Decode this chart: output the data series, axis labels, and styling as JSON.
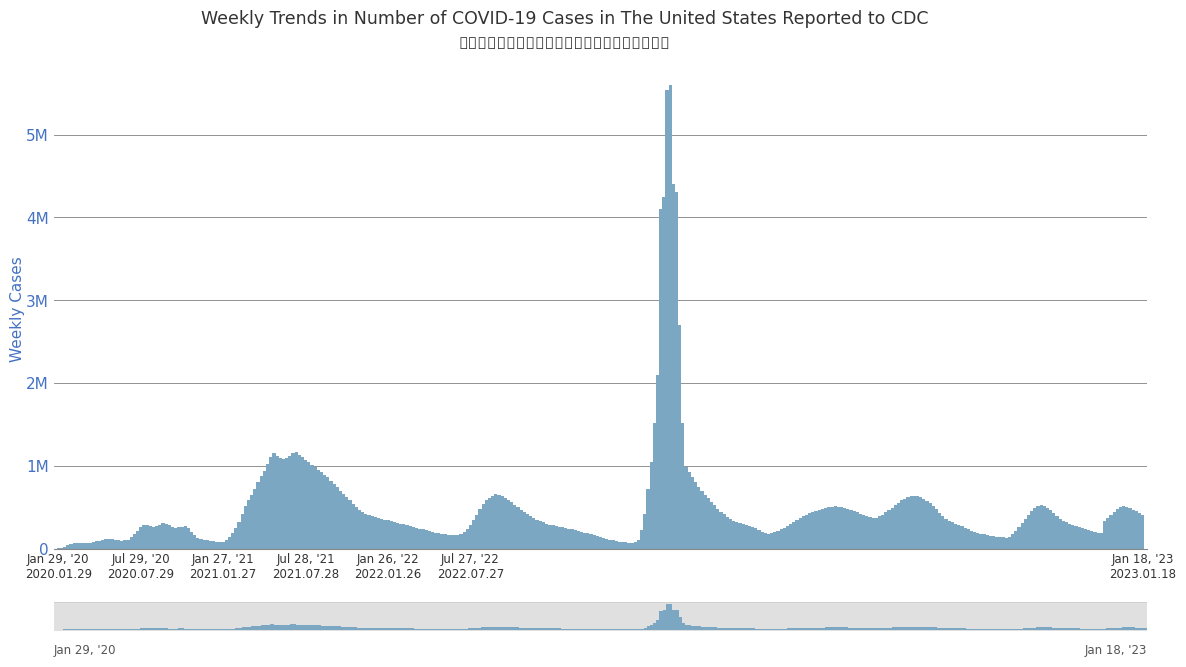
{
  "title_en": "Weekly Trends in Number of COVID-19 Cases in The United States Reported to CDC",
  "title_zh": "向美国疾控中心报告的新冠病例数量趋势（每周）",
  "ylabel": "Weekly Cases",
  "bar_color": "#7ba7c2",
  "ylim": [
    0,
    5800000
  ],
  "yticks": [
    0,
    1000000,
    2000000,
    3000000,
    4000000,
    5000000
  ],
  "ytick_labels": [
    "0",
    "1M",
    "2M",
    "3M",
    "4M",
    "5M"
  ],
  "xtick_top": [
    "Jan 29, '20",
    "Jul 29, '20",
    "Jan 27, '21",
    "Jul 28, '21",
    "Jan 26, '22",
    "Jul 27, '22",
    "Jan 18, '23"
  ],
  "xtick_bot": [
    "2020.01.29",
    "2020.07.29",
    "2021.01.27",
    "2021.07.28",
    "2022.01.26",
    "2022.07.27",
    "2023.01.18"
  ],
  "bottom_left": "Jan 29, '20",
  "bottom_right": "Jan 18, '23",
  "weekly_cases": [
    3000,
    8000,
    22000,
    45000,
    55000,
    68000,
    72000,
    68000,
    62000,
    65000,
    72000,
    78000,
    85000,
    95000,
    105000,
    115000,
    118000,
    112000,
    105000,
    98000,
    92000,
    98000,
    108000,
    138000,
    175000,
    215000,
    255000,
    278000,
    285000,
    270000,
    265000,
    272000,
    290000,
    305000,
    298000,
    278000,
    258000,
    248000,
    255000,
    265000,
    272000,
    245000,
    198000,
    158000,
    132000,
    118000,
    108000,
    98000,
    92000,
    88000,
    82000,
    78000,
    82000,
    98000,
    135000,
    185000,
    245000,
    320000,
    420000,
    510000,
    580000,
    650000,
    720000,
    800000,
    870000,
    940000,
    1020000,
    1100000,
    1150000,
    1120000,
    1090000,
    1080000,
    1090000,
    1120000,
    1150000,
    1160000,
    1130000,
    1100000,
    1070000,
    1040000,
    1010000,
    980000,
    950000,
    920000,
    890000,
    860000,
    820000,
    780000,
    740000,
    700000,
    660000,
    620000,
    580000,
    540000,
    500000,
    465000,
    435000,
    415000,
    400000,
    390000,
    380000,
    370000,
    360000,
    350000,
    340000,
    330000,
    320000,
    310000,
    300000,
    292000,
    282000,
    272000,
    262000,
    250000,
    240000,
    230000,
    220000,
    210000,
    200000,
    192000,
    185000,
    178000,
    172000,
    167000,
    164000,
    163000,
    168000,
    178000,
    198000,
    235000,
    285000,
    345000,
    410000,
    475000,
    535000,
    580000,
    615000,
    640000,
    655000,
    650000,
    635000,
    615000,
    590000,
    560000,
    530000,
    500000,
    470000,
    440000,
    415000,
    390000,
    368000,
    348000,
    330000,
    315000,
    300000,
    288000,
    278000,
    270000,
    262000,
    255000,
    248000,
    240000,
    232000,
    222000,
    212000,
    202000,
    192000,
    182000,
    172000,
    162000,
    152000,
    142000,
    132000,
    120000,
    108000,
    98000,
    90000,
    84000,
    78000,
    74000,
    70000,
    68000,
    75000,
    105000,
    220000,
    420000,
    720000,
    1050000,
    1520000,
    2100000,
    4100000,
    4250000,
    5540000,
    5600000,
    4400000,
    4300000,
    2700000,
    1520000,
    980000,
    920000,
    860000,
    800000,
    748000,
    698000,
    650000,
    605000,
    562000,
    520000,
    480000,
    445000,
    412000,
    382000,
    358000,
    338000,
    320000,
    305000,
    292000,
    282000,
    272000,
    262000,
    242000,
    222000,
    202000,
    188000,
    180000,
    185000,
    198000,
    215000,
    232000,
    252000,
    272000,
    295000,
    318000,
    342000,
    365000,
    388000,
    408000,
    428000,
    445000,
    458000,
    468000,
    478000,
    488000,
    498000,
    505000,
    508000,
    505000,
    498000,
    488000,
    478000,
    465000,
    452000,
    438000,
    422000,
    405000,
    388000,
    375000,
    368000,
    372000,
    388000,
    408000,
    435000,
    465000,
    495000,
    525000,
    555000,
    580000,
    602000,
    620000,
    632000,
    640000,
    632000,
    618000,
    600000,
    575000,
    545000,
    510000,
    472000,
    432000,
    392000,
    360000,
    335000,
    315000,
    300000,
    285000,
    268000,
    250000,
    232000,
    215000,
    202000,
    190000,
    180000,
    170000,
    162000,
    154000,
    148000,
    144000,
    140000,
    136000,
    132000,
    145000,
    172000,
    210000,
    255000,
    308000,
    360000,
    408000,
    455000,
    492000,
    515000,
    525000,
    512000,
    490000,
    462000,
    428000,
    392000,
    360000,
    335000,
    315000,
    298000,
    282000,
    268000,
    255000,
    242000,
    230000,
    220000,
    210000,
    200000,
    190000,
    182000,
    338000,
    368000,
    408000,
    445000,
    475000,
    498000,
    508000,
    502000,
    488000,
    468000,
    448000,
    428000,
    408000
  ]
}
